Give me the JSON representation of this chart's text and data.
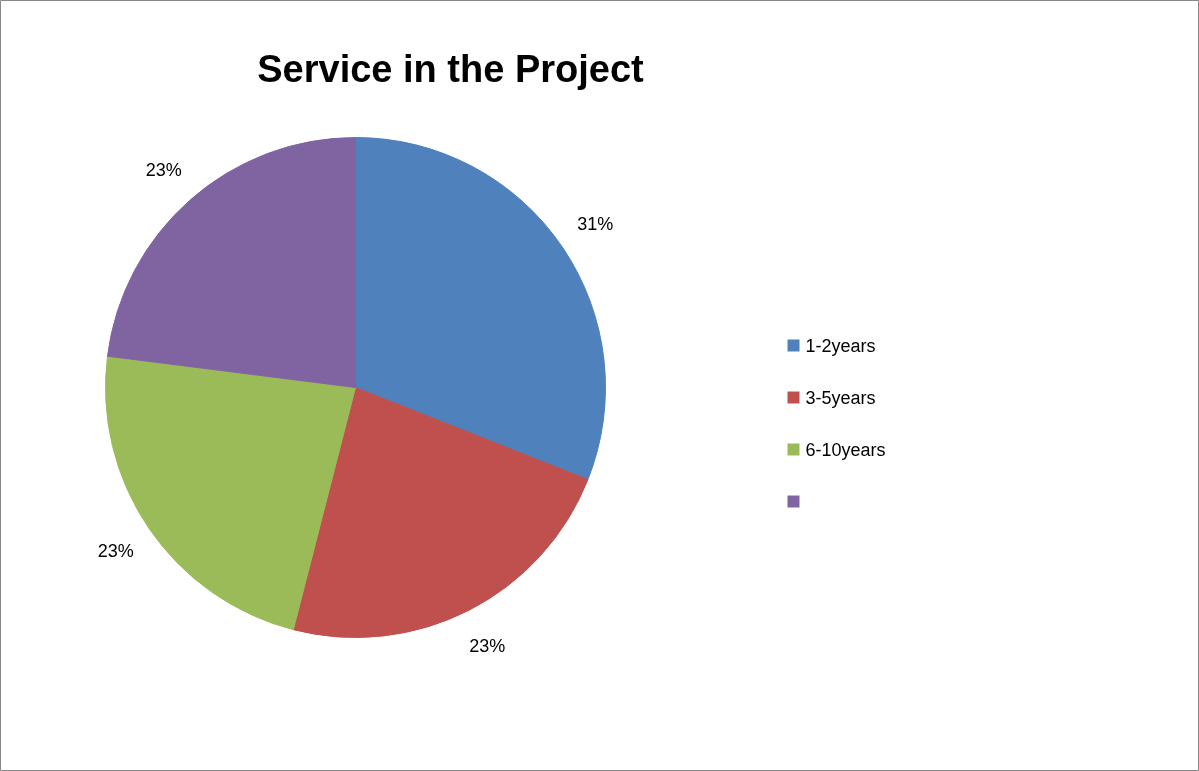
{
  "chart_data": {
    "type": "pie",
    "title": "Service in the Project",
    "categories": [
      "1-2years",
      "3-5years",
      "6-10years",
      null
    ],
    "values": [
      31,
      23,
      23,
      23
    ],
    "colors": [
      "#4f81bd",
      "#c0504d",
      "#9bbb59",
      "#8064a2"
    ],
    "value_labels": [
      "31%",
      "23%",
      "23%",
      "23%"
    ],
    "legend": "right"
  }
}
